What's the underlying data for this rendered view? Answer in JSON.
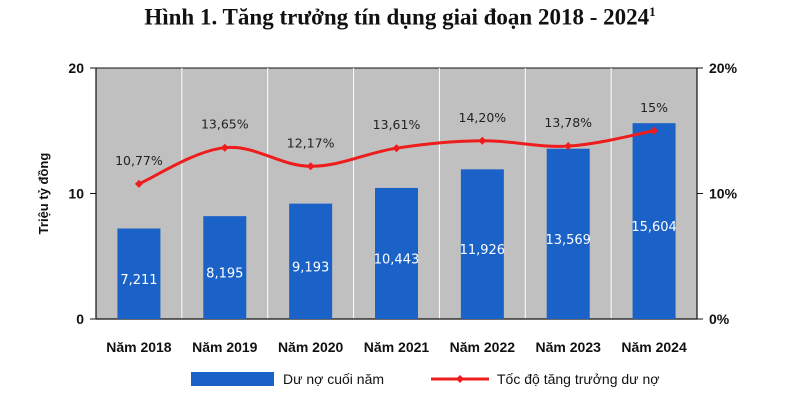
{
  "title": {
    "text": "Hình 1. Tăng trưởng tín dụng giai đoạn 2018 - 2024",
    "footnote": "1"
  },
  "chart_data": {
    "type": "bar",
    "categories": [
      "Năm 2018",
      "Năm 2019",
      "Năm 2020",
      "Năm 2021",
      "Năm 2022",
      "Năm 2023",
      "Năm 2024"
    ],
    "series": [
      {
        "name": "Dư nợ cuối năm",
        "type": "bar",
        "axis": "left",
        "values": [
          7.211,
          8.195,
          9.193,
          10.443,
          11.926,
          13.569,
          15.604
        ],
        "labels": [
          "7,211",
          "8,195",
          "9,193",
          "10,443",
          "11,926",
          "13,569",
          "15,604"
        ],
        "color": "#1a62c8"
      },
      {
        "name": "Tốc độ tăng trưởng dư nợ",
        "type": "line",
        "axis": "right",
        "values": [
          10.77,
          13.65,
          12.17,
          13.61,
          14.2,
          13.78,
          15.0
        ],
        "labels": [
          "10,77%",
          "13,65%",
          "12,17%",
          "13,61%",
          "14,20%",
          "13,78%",
          "15%"
        ],
        "color": "#ee1c1c"
      }
    ],
    "ylabel": "Triệu tỷ đồng",
    "ylim": [
      0,
      20
    ],
    "yticks": [
      "0",
      "10",
      "20"
    ],
    "y2lim": [
      0,
      20
    ],
    "y2ticks": [
      "0%",
      "10%",
      "20%"
    ],
    "grid": false,
    "plot_background": "#c0c0c0",
    "legend_position": "bottom"
  }
}
